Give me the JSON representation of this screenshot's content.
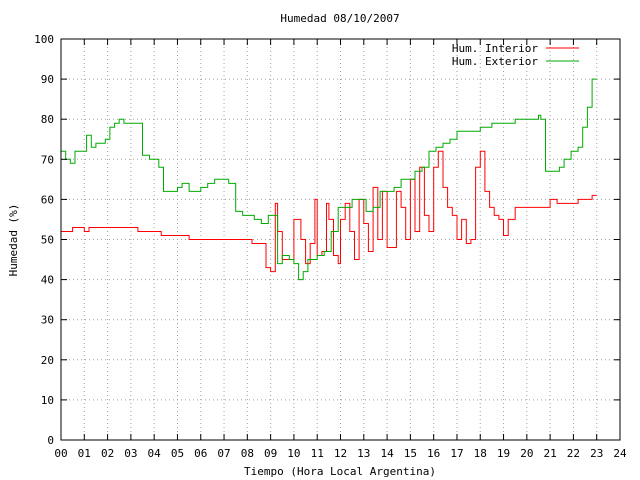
{
  "chart_data": {
    "type": "line",
    "title": "Humedad 08/10/2007",
    "xlabel": "Tiempo (Hora Local Argentina)",
    "ylabel": "Humedad (%)",
    "xlim": [
      0,
      24
    ],
    "ylim": [
      0,
      100
    ],
    "x_ticks": [
      "00",
      "01",
      "02",
      "03",
      "04",
      "05",
      "06",
      "07",
      "08",
      "09",
      "10",
      "11",
      "12",
      "13",
      "14",
      "15",
      "16",
      "17",
      "18",
      "19",
      "20",
      "21",
      "22",
      "23",
      "24"
    ],
    "y_ticks": [
      0,
      10,
      20,
      30,
      40,
      50,
      60,
      70,
      80,
      90,
      100
    ],
    "grid": true,
    "legend_position": "top-right",
    "series": [
      {
        "name": "Hum. Interior",
        "color": "#ff0000",
        "x": [
          0,
          0.3,
          0.5,
          0.7,
          1.0,
          1.2,
          1.8,
          2.0,
          2.3,
          2.6,
          3.0,
          3.3,
          3.6,
          4.0,
          4.3,
          4.6,
          5.0,
          5.5,
          6.0,
          6.5,
          7.0,
          7.3,
          7.6,
          7.9,
          8.2,
          8.5,
          8.8,
          9.0,
          9.2,
          9.3,
          9.5,
          9.8,
          10.0,
          10.3,
          10.5,
          10.7,
          10.9,
          11.0,
          11.2,
          11.4,
          11.5,
          11.7,
          11.9,
          12.0,
          12.2,
          12.4,
          12.6,
          12.8,
          13.0,
          13.2,
          13.4,
          13.6,
          13.8,
          14.0,
          14.2,
          14.4,
          14.6,
          14.8,
          15.0,
          15.2,
          15.4,
          15.6,
          15.8,
          16.0,
          16.2,
          16.4,
          16.6,
          16.8,
          17.0,
          17.2,
          17.4,
          17.6,
          17.8,
          18.0,
          18.2,
          18.4,
          18.6,
          18.8,
          19.0,
          19.2,
          19.5,
          19.8,
          20.0,
          20.3,
          20.6,
          21.0,
          21.3,
          21.6,
          21.9,
          22.2,
          22.5,
          22.8,
          23.0
        ],
        "values": [
          52,
          52,
          53,
          53,
          52,
          53,
          53,
          53,
          53,
          53,
          53,
          52,
          52,
          52,
          51,
          51,
          51,
          50,
          50,
          50,
          50,
          50,
          50,
          50,
          49,
          49,
          43,
          42,
          59,
          52,
          45,
          45,
          55,
          50,
          44,
          49,
          60,
          46,
          47,
          59,
          55,
          46,
          44,
          55,
          59,
          52,
          45,
          60,
          54,
          47,
          63,
          50,
          62,
          48,
          48,
          62,
          58,
          50,
          65,
          52,
          68,
          56,
          52,
          68,
          72,
          63,
          58,
          56,
          50,
          55,
          49,
          50,
          68,
          72,
          62,
          58,
          56,
          55,
          51,
          55,
          58,
          58,
          58,
          58,
          58,
          60,
          59,
          59,
          59,
          60,
          60,
          61,
          61
        ]
      },
      {
        "name": "Hum. Exterior",
        "color": "#00aa00",
        "x": [
          0,
          0.2,
          0.4,
          0.6,
          0.8,
          1.0,
          1.1,
          1.3,
          1.5,
          1.7,
          1.9,
          2.1,
          2.3,
          2.5,
          2.7,
          3.0,
          3.3,
          3.5,
          3.8,
          4.0,
          4.2,
          4.4,
          4.6,
          4.8,
          5.0,
          5.2,
          5.5,
          5.8,
          6.0,
          6.3,
          6.6,
          7.0,
          7.2,
          7.5,
          7.8,
          8.0,
          8.3,
          8.6,
          8.9,
          9.1,
          9.3,
          9.5,
          9.8,
          10.0,
          10.2,
          10.4,
          10.6,
          10.8,
          11.0,
          11.3,
          11.6,
          11.9,
          12.2,
          12.5,
          12.8,
          13.1,
          13.4,
          13.7,
          14.0,
          14.3,
          14.6,
          14.9,
          15.2,
          15.5,
          15.8,
          16.1,
          16.4,
          16.7,
          17.0,
          17.5,
          18.0,
          18.5,
          19.0,
          19.5,
          20.0,
          20.3,
          20.5,
          20.6,
          20.8,
          21.0,
          21.2,
          21.4,
          21.6,
          21.9,
          22.2,
          22.4,
          22.6,
          22.8,
          23.0
        ],
        "values": [
          72,
          70,
          69,
          72,
          72,
          72,
          76,
          73,
          74,
          74,
          75,
          78,
          79,
          80,
          79,
          79,
          79,
          71,
          70,
          70,
          68,
          62,
          62,
          62,
          63,
          64,
          62,
          62,
          63,
          64,
          65,
          65,
          64,
          57,
          56,
          56,
          55,
          54,
          56,
          56,
          44,
          46,
          45,
          44,
          40,
          42,
          45,
          45,
          46,
          47,
          52,
          58,
          58,
          60,
          60,
          57,
          58,
          62,
          62,
          63,
          65,
          65,
          67,
          68,
          72,
          73,
          74,
          75,
          77,
          77,
          78,
          79,
          79,
          80,
          80,
          80,
          81,
          80,
          67,
          67,
          67,
          68,
          70,
          72,
          73,
          78,
          83,
          90,
          90
        ]
      }
    ]
  }
}
